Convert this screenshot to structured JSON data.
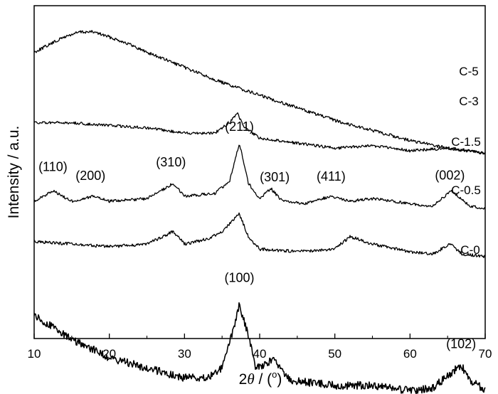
{
  "chart_data": {
    "type": "line",
    "title": "",
    "xlabel_prefix": "2",
    "xlabel_theta": "θ",
    "xlabel_suffix": " / (",
    "xlabel_degree": "o",
    "xlabel_close": ")",
    "ylabel": "Intensity / a.u.",
    "xlim": [
      10,
      70
    ],
    "xticks": [
      "10",
      "20",
      "30",
      "40",
      "50",
      "60",
      "70"
    ],
    "yticks": [],
    "grid": false,
    "legend": "none",
    "line_color": "#000000",
    "series": [
      {
        "name": "C-5",
        "x": [
          10,
          12,
          14,
          16,
          18,
          20,
          22,
          25,
          30,
          35,
          40,
          45,
          50,
          55,
          60,
          65,
          70
        ],
        "y": [
          0.92,
          0.95,
          0.98,
          1.0,
          1.0,
          0.98,
          0.96,
          0.92,
          0.86,
          0.8,
          0.75,
          0.7,
          0.65,
          0.61,
          0.57,
          0.54,
          0.52
        ]
      },
      {
        "name": "C-3",
        "x": [
          10,
          15,
          20,
          25,
          30,
          34,
          36,
          37,
          38,
          40,
          45,
          50,
          55,
          60,
          65,
          70
        ],
        "y": [
          0.64,
          0.64,
          0.63,
          0.62,
          0.6,
          0.6,
          0.64,
          0.68,
          0.62,
          0.58,
          0.56,
          0.54,
          0.55,
          0.53,
          0.54,
          0.52
        ]
      },
      {
        "name": "C-1.5",
        "x": [
          10,
          12.5,
          15,
          18,
          20,
          25,
          28.5,
          30,
          34,
          36,
          37.3,
          38.5,
          40,
          41.5,
          43,
          46,
          49.5,
          52,
          55,
          60,
          63,
          65.5,
          68,
          70
        ],
        "y": [
          0.33,
          0.37,
          0.33,
          0.35,
          0.33,
          0.34,
          0.4,
          0.35,
          0.36,
          0.41,
          0.56,
          0.4,
          0.34,
          0.38,
          0.33,
          0.32,
          0.35,
          0.33,
          0.34,
          0.32,
          0.31,
          0.37,
          0.31,
          0.3
        ]
      },
      {
        "name": "C-0.5",
        "x": [
          10,
          15,
          20,
          25,
          28.5,
          30,
          33,
          35,
          37.3,
          38.5,
          40,
          45,
          50,
          52,
          55,
          60,
          63,
          65.3,
          67,
          70
        ],
        "y": [
          0.17,
          0.16,
          0.15,
          0.16,
          0.21,
          0.16,
          0.18,
          0.21,
          0.28,
          0.19,
          0.14,
          0.13,
          0.14,
          0.19,
          0.16,
          0.13,
          0.12,
          0.16,
          0.12,
          0.11
        ]
      },
      {
        "name": "C-0",
        "x": [
          10,
          12,
          15,
          18,
          20,
          25,
          30,
          33,
          35,
          36.5,
          37.3,
          38.2,
          39.5,
          41.8,
          44,
          50,
          55,
          60,
          63,
          65.5,
          66.8,
          68,
          70
        ],
        "y": [
          -0.12,
          -0.16,
          -0.22,
          -0.26,
          -0.29,
          -0.33,
          -0.37,
          -0.37,
          -0.33,
          -0.18,
          -0.08,
          -0.17,
          -0.33,
          -0.3,
          -0.38,
          -0.4,
          -0.4,
          -0.42,
          -0.41,
          -0.35,
          -0.32,
          -0.38,
          -0.42
        ]
      }
    ],
    "series_labels": [
      "C-5",
      "C-3",
      "C-1.5",
      "C-0.5",
      "C-0"
    ],
    "annotations": [
      {
        "text": "(110)",
        "x": 12.5,
        "series": "C-1.5"
      },
      {
        "text": "(200)",
        "x": 17.5,
        "series": "C-1.5"
      },
      {
        "text": "(310)",
        "x": 28.2,
        "series": "C-1.5"
      },
      {
        "text": "(211)",
        "x": 37.3,
        "series": "C-1.5"
      },
      {
        "text": "(301)",
        "x": 42,
        "series": "C-1.5"
      },
      {
        "text": "(411)",
        "x": 49.5,
        "series": "C-1.5"
      },
      {
        "text": "(002)",
        "x": 65.3,
        "series": "C-1.5"
      },
      {
        "text": "(100)",
        "x": 37.3,
        "series": "C-0"
      },
      {
        "text": "(102)",
        "x": 66.8,
        "series": "C-0"
      }
    ]
  }
}
